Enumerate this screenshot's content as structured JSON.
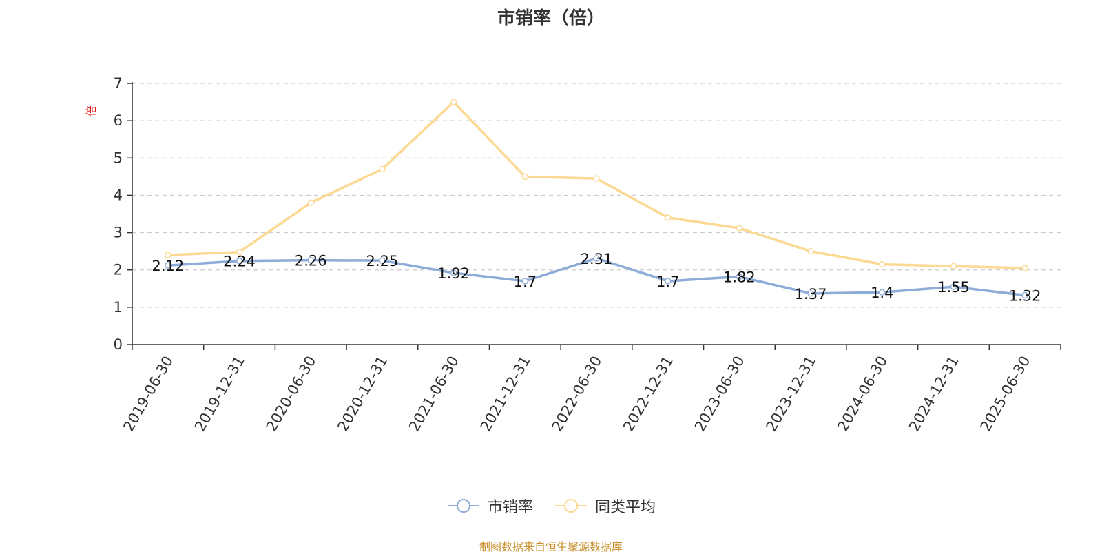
{
  "chart_data": {
    "type": "line",
    "title": "市销率（倍）",
    "ylabel": "倍",
    "ylim": [
      0,
      7
    ],
    "yticks": [
      0,
      1,
      2,
      3,
      4,
      5,
      6,
      7
    ],
    "categories": [
      "2019-06-30",
      "2019-12-31",
      "2020-06-30",
      "2020-12-31",
      "2021-06-30",
      "2021-12-31",
      "2022-06-30",
      "2022-12-31",
      "2023-06-30",
      "2023-12-31",
      "2024-06-30",
      "2024-12-31",
      "2025-06-30"
    ],
    "series": [
      {
        "name": "市销率",
        "color": "#8eacd8",
        "show_labels": true,
        "values": [
          2.12,
          2.24,
          2.26,
          2.25,
          1.92,
          1.7,
          2.31,
          1.7,
          1.82,
          1.37,
          1.4,
          1.55,
          1.32
        ]
      },
      {
        "name": "同类平均",
        "color": "#fcd992",
        "show_labels": false,
        "values": [
          2.4,
          2.48,
          3.8,
          4.7,
          6.5,
          4.5,
          4.45,
          3.4,
          3.12,
          2.5,
          2.15,
          2.1,
          2.05
        ]
      }
    ],
    "grid": "dashed-horizontal",
    "legend_position": "bottom-center",
    "source": "制图数据来自恒生聚源数据库"
  }
}
